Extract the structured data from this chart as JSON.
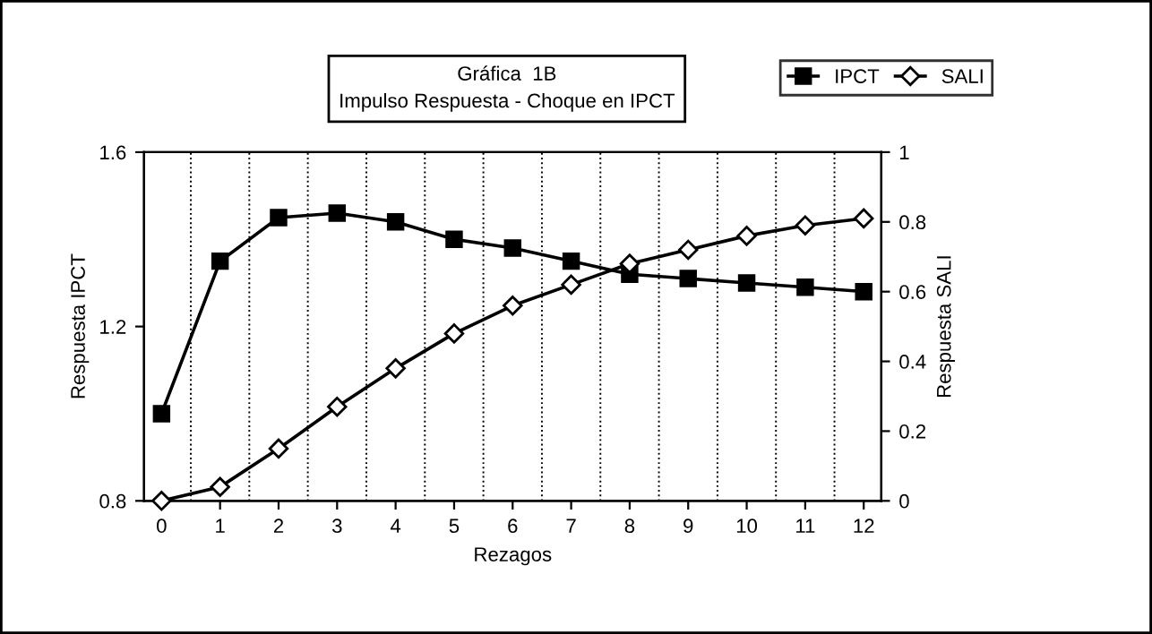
{
  "chart_data": {
    "type": "line",
    "title": "Gráfica  1B\nImpulso Respuesta - Choque en IPCT",
    "xlabel": "Rezagos",
    "ylabel": "Respuesta IPCT",
    "y2label": "Respuesta SALI",
    "categories": [
      "0",
      "1",
      "2",
      "3",
      "4",
      "5",
      "6",
      "7",
      "8",
      "9",
      "10",
      "11",
      "12"
    ],
    "series": [
      {
        "name": "IPCT",
        "color": "#000000",
        "marker": "square",
        "values": [
          1.0,
          1.35,
          1.45,
          1.46,
          1.44,
          1.4,
          1.38,
          1.35,
          1.32,
          1.31,
          1.3,
          1.29,
          1.28
        ]
      },
      {
        "name": "SALI",
        "color": "#000000",
        "marker": "diamond",
        "axis": "y2",
        "values": [
          0,
          0.04,
          0.15,
          0.27,
          0.38,
          0.48,
          0.56,
          0.62,
          0.68,
          0.72,
          0.76,
          0.79,
          0.81
        ]
      }
    ],
    "ylim": [
      0.8,
      1.6
    ],
    "yticks": [
      0.8,
      1.2,
      1.6
    ],
    "y2lim": [
      0,
      1
    ],
    "y2ticks": [
      0,
      0.2,
      0.4,
      0.6,
      0.8,
      1
    ],
    "grid": "x",
    "legend": "top right",
    "line_style": "solid"
  }
}
